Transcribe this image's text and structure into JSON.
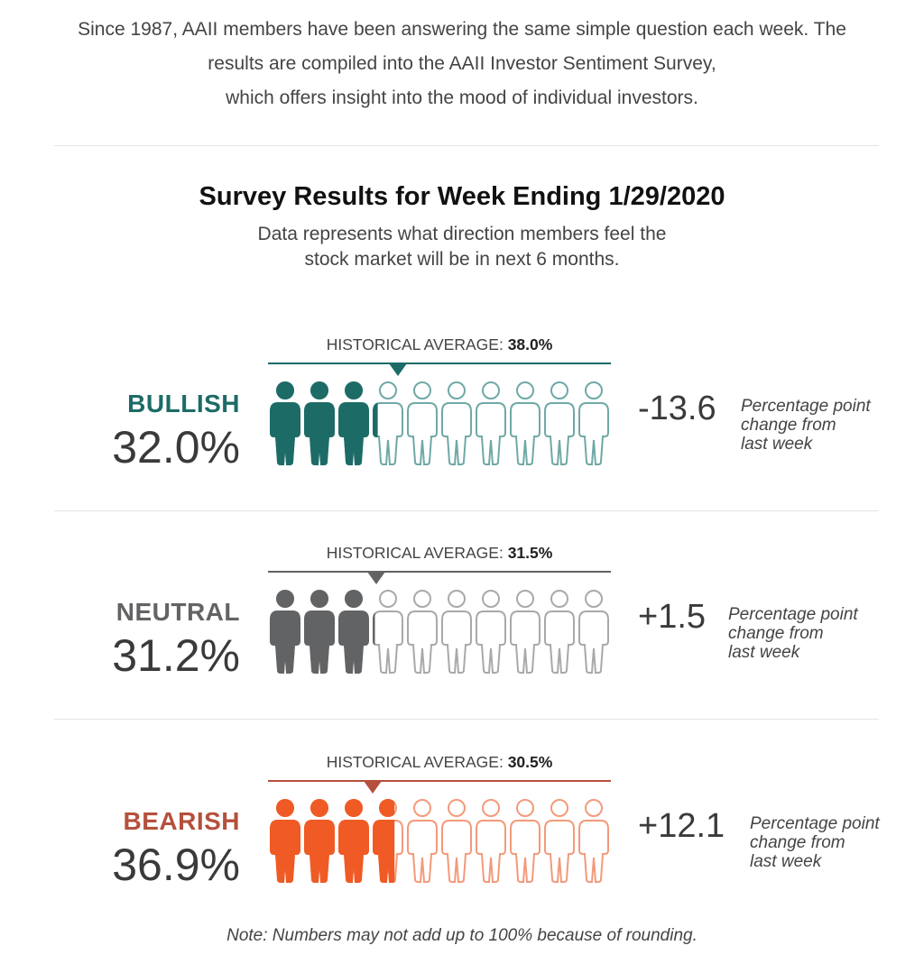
{
  "intro": {
    "line1": "Since 1987, AAII members have been answering the same simple question each week. The",
    "line2": "results are compiled into the AAII Investor Sentiment Survey,",
    "line3": "which offers insight into the mood of individual investors."
  },
  "survey": {
    "title": "Survey Results for Week Ending 1/29/2020",
    "subtitle_line1": "Data represents what direction members feel the",
    "subtitle_line2": "stock market will be in next 6 months."
  },
  "note": "Note: Numbers may not add up to 100% because of rounding.",
  "change_note": {
    "line1": "Percentage point",
    "line2": "change from",
    "line3": "last week"
  },
  "chart_data": {
    "type": "pictograph",
    "icons_total": 10,
    "series": [
      {
        "name": "BULLISH",
        "value_label": "32.0%",
        "value": 32.0,
        "historical_label": "HISTORICAL AVERAGE:",
        "historical_value_label": "38.0%",
        "historical_value": 38.0,
        "change_label": "-13.6",
        "change": -13.6,
        "color": "#1d6b67",
        "outline_color": "#6fa9a6"
      },
      {
        "name": "NEUTRAL",
        "value_label": "31.2%",
        "value": 31.2,
        "historical_label": "HISTORICAL AVERAGE:",
        "historical_value_label": "31.5%",
        "historical_value": 31.5,
        "change_label": "+1.5",
        "change": 1.5,
        "color": "#626365",
        "outline_color": "#a8a9ab"
      },
      {
        "name": "BEARISH",
        "value_label": "36.9%",
        "value": 36.9,
        "historical_label": "HISTORICAL AVERAGE:",
        "historical_value_label": "30.5%",
        "historical_value": 30.5,
        "change_label": "+12.1",
        "change": 12.1,
        "color": "#f05a24",
        "label_color": "#b5503c",
        "line_color": "#b5503c",
        "outline_color": "#f39a7a"
      }
    ]
  }
}
